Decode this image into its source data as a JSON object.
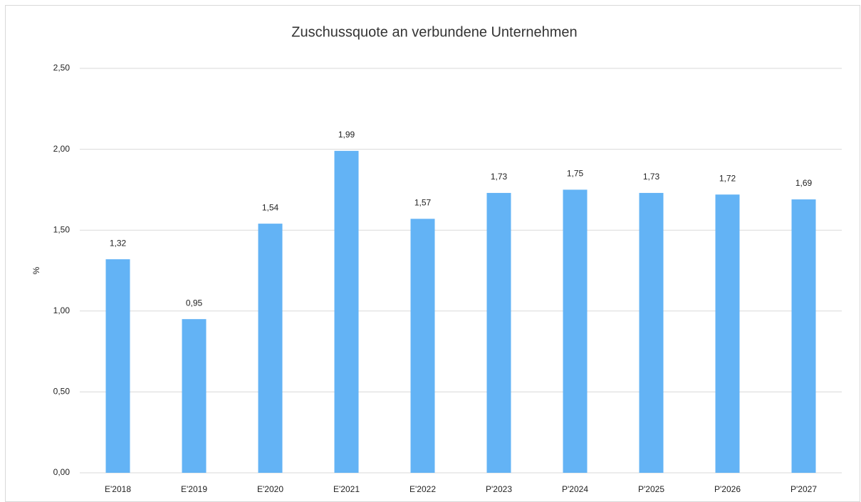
{
  "chart_data": {
    "type": "bar",
    "title": "Zuschussquote an verbundene Unternehmen",
    "y_label": "%",
    "categories": [
      "E'2018",
      "E'2019",
      "E'2020",
      "E'2021",
      "E'2022",
      "P'2023",
      "P'2024",
      "P'2025",
      "P'2026",
      "P'2027"
    ],
    "values": [
      1.32,
      0.95,
      1.54,
      1.99,
      1.57,
      1.73,
      1.75,
      1.73,
      1.72,
      1.69
    ],
    "value_labels": [
      "1,32",
      "0,95",
      "1,54",
      "1,99",
      "1,57",
      "1,73",
      "1,75",
      "1,73",
      "1,72",
      "1,69"
    ],
    "color": "#63b3f5",
    "ylim": [
      0,
      2.5
    ],
    "yticks": [
      {
        "value": 0,
        "label": "0,00"
      },
      {
        "value": 0.5,
        "label": "0,50"
      },
      {
        "value": 1,
        "label": "1,00"
      },
      {
        "value": 1.5,
        "label": "1,50"
      },
      {
        "value": 2,
        "label": "2,00"
      },
      {
        "value": 2.5,
        "label": "2,50"
      }
    ],
    "grid": true
  }
}
